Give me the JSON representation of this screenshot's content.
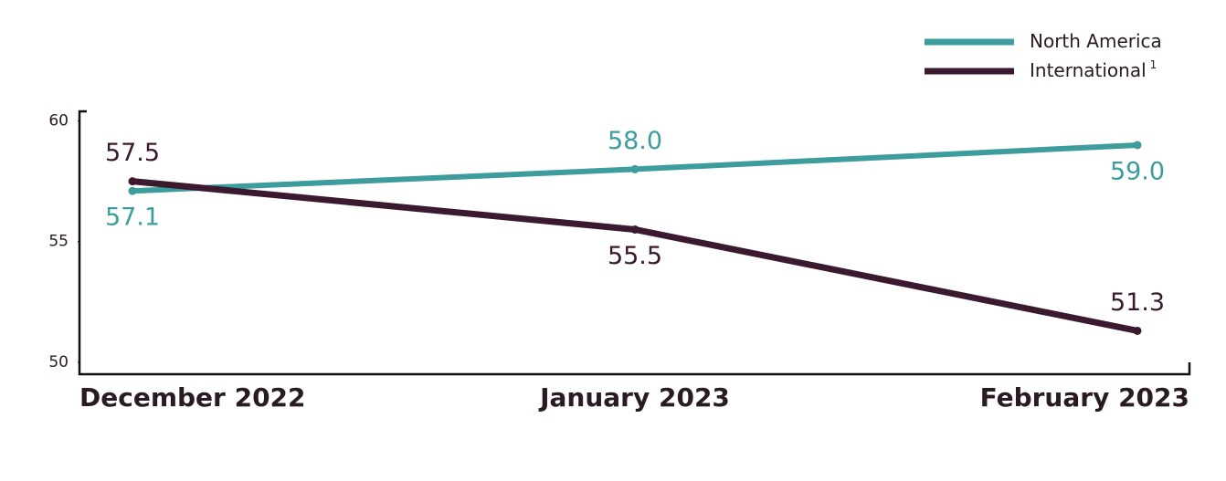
{
  "chart_data": {
    "type": "line",
    "categories": [
      "December 2022",
      "January 2023",
      "February 2023"
    ],
    "series": [
      {
        "name": "North America",
        "color": "#3d9c9c",
        "values": [
          57.1,
          58.0,
          59.0
        ],
        "value_labels": [
          "57.1",
          "58.0",
          "59.0"
        ]
      },
      {
        "name": "International",
        "footnote": "1",
        "color": "#3b1a2f",
        "values": [
          57.5,
          55.5,
          51.3
        ],
        "value_labels": [
          "57.5",
          "55.5",
          "51.3"
        ]
      }
    ],
    "ylim": [
      49.5,
      60.4
    ],
    "yticks": [
      50,
      55,
      60
    ],
    "legend": "top-right"
  }
}
